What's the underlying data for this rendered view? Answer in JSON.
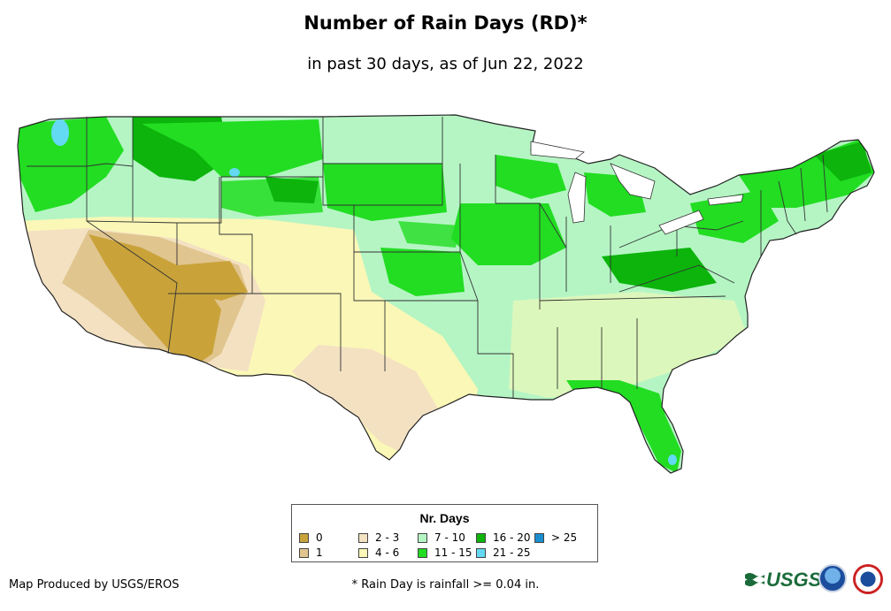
{
  "title": "Number of Rain Days (RD)*",
  "subtitle": "in past 30 days, as of Jun 22, 2022",
  "legend": {
    "title": "Nr. Days",
    "items": [
      {
        "label": "0",
        "color": "#c9a33a"
      },
      {
        "label": "1",
        "color": "#e0c58f"
      },
      {
        "label": "2 - 3",
        "color": "#f3e1c2"
      },
      {
        "label": "4 - 6",
        "color": "#fbf7b7"
      },
      {
        "label": "7 - 10",
        "color": "#b5f5c4"
      },
      {
        "label": "11 - 15",
        "color": "#22dd22"
      },
      {
        "label": "16 - 20",
        "color": "#0cb40c"
      },
      {
        "label": "21 - 25",
        "color": "#63d9f2"
      },
      {
        "label": "> 25",
        "color": "#1a8fd0"
      }
    ]
  },
  "credit": "Map Produced by USGS/EROS",
  "footnote": "* Rain Day is rainfall >= 0.04 in.",
  "logos": {
    "usgs_text": "USGS"
  },
  "map_icons": [
    "conus-map",
    "state-borders"
  ]
}
